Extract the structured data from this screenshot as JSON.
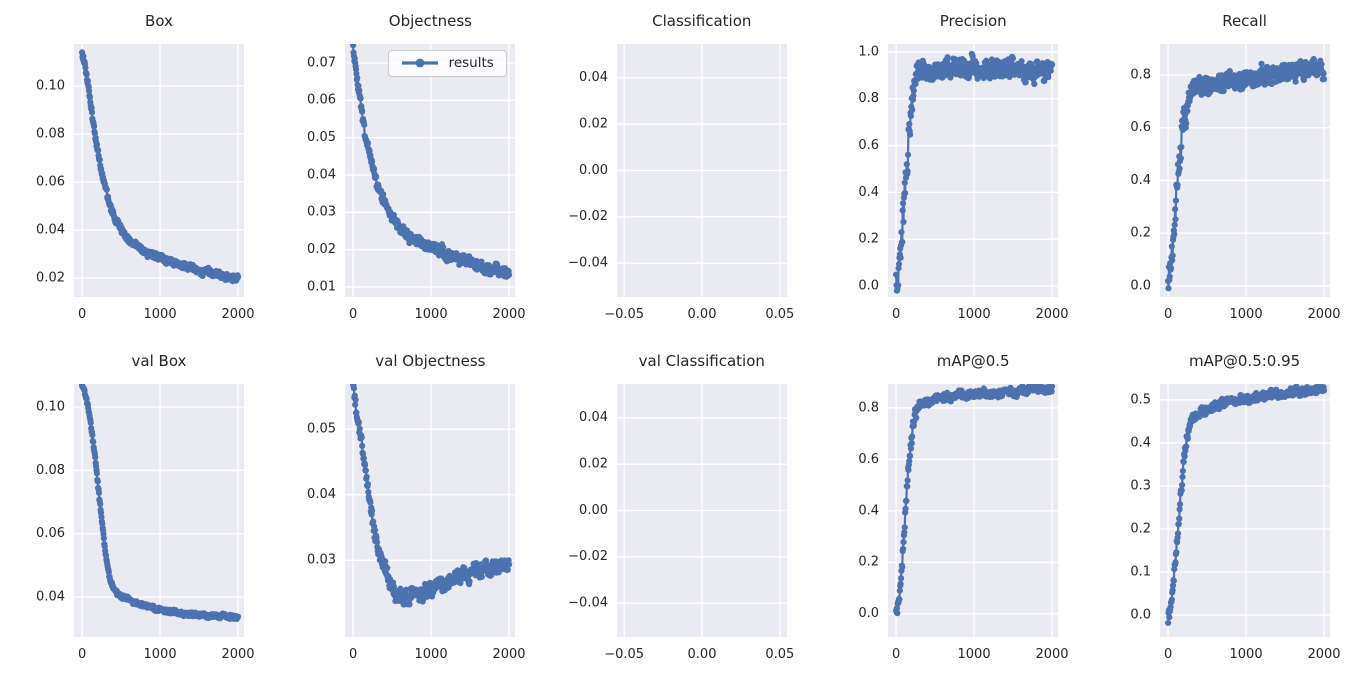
{
  "figure": {
    "background": "#ffffff",
    "axes_background": "#eaeaf2",
    "grid_color": "#ffffff",
    "text_color": "#262626",
    "accent_line_color": "#4c72b0",
    "legend_label": "results"
  },
  "chart_data": [
    {
      "type": "line",
      "title": "Box",
      "xlim": [
        -104,
        2077
      ],
      "ylim": [
        0.0121,
        0.1175
      ],
      "x_tick_values": [
        0,
        1000,
        2000
      ],
      "x_tick_labels": [
        "0",
        "1000",
        "2000"
      ],
      "y_tick_values": [
        0.02,
        0.04,
        0.06,
        0.08,
        0.1
      ],
      "y_tick_labels": [
        "0.02",
        "0.04",
        "0.06",
        "0.08",
        "0.10"
      ],
      "grid": true,
      "series": [
        {
          "name": "results",
          "x": [
            0,
            30,
            60,
            90,
            120,
            150,
            180,
            210,
            240,
            270,
            300,
            350,
            400,
            450,
            500,
            600,
            700,
            800,
            900,
            1000,
            1100,
            1200,
            1300,
            1400,
            1500,
            1600,
            1700,
            1800,
            1900,
            2000
          ],
          "y": [
            0.114,
            0.11,
            0.104,
            0.097,
            0.09,
            0.083,
            0.077,
            0.071,
            0.066,
            0.061,
            0.057,
            0.051,
            0.046,
            0.0425,
            0.04,
            0.036,
            0.0335,
            0.0315,
            0.03,
            0.0285,
            0.027,
            0.026,
            0.025,
            0.024,
            0.0232,
            0.0225,
            0.0218,
            0.0212,
            0.0207,
            0.0202
          ],
          "noise": 0.0017
        }
      ]
    },
    {
      "type": "line",
      "title": "Objectness",
      "legend": {
        "label": "results"
      },
      "xlim": [
        -104,
        2077
      ],
      "ylim": [
        0.0073,
        0.0751
      ],
      "x_tick_values": [
        0,
        1000,
        2000
      ],
      "x_tick_labels": [
        "0",
        "1000",
        "2000"
      ],
      "y_tick_values": [
        0.01,
        0.02,
        0.03,
        0.04,
        0.05,
        0.06,
        0.07
      ],
      "y_tick_labels": [
        "0.01",
        "0.02",
        "0.03",
        "0.04",
        "0.05",
        "0.06",
        "0.07"
      ],
      "grid": true,
      "series": [
        {
          "name": "results",
          "x": [
            0,
            30,
            60,
            90,
            120,
            150,
            180,
            210,
            240,
            270,
            300,
            350,
            400,
            450,
            500,
            600,
            700,
            800,
            900,
            1000,
            1100,
            1200,
            1300,
            1400,
            1500,
            1600,
            1700,
            1800,
            1900,
            2000
          ],
          "y": [
            0.073,
            0.069,
            0.064,
            0.06,
            0.056,
            0.052,
            0.049,
            0.046,
            0.043,
            0.0405,
            0.038,
            0.035,
            0.0325,
            0.0305,
            0.0285,
            0.026,
            0.024,
            0.0225,
            0.0215,
            0.0205,
            0.0195,
            0.0187,
            0.0179,
            0.0172,
            0.0165,
            0.0159,
            0.0153,
            0.0148,
            0.0143,
            0.0139
          ],
          "noise": 0.0017
        }
      ]
    },
    {
      "type": "line",
      "title": "Classification",
      "xlim": [
        -0.0546,
        0.0546
      ],
      "ylim": [
        -0.0546,
        0.0546
      ],
      "x_tick_values": [
        -0.05,
        0.0,
        0.05
      ],
      "x_tick_labels": [
        "−0.05",
        "0.00",
        "0.05"
      ],
      "y_tick_values": [
        0.04,
        0.02,
        0.0,
        -0.02,
        -0.04
      ],
      "y_tick_labels": [
        "0.04",
        "0.02",
        "0.00",
        "−0.02",
        "−0.04"
      ],
      "grid": true,
      "series": []
    },
    {
      "type": "line",
      "title": "Precision",
      "xlim": [
        -104,
        2077
      ],
      "ylim": [
        -0.047,
        1.034
      ],
      "x_tick_values": [
        0,
        1000,
        2000
      ],
      "x_tick_labels": [
        "0",
        "1000",
        "2000"
      ],
      "y_tick_values": [
        0.0,
        0.2,
        0.4,
        0.6,
        0.8,
        1.0
      ],
      "y_tick_labels": [
        "0.0",
        "0.2",
        "0.4",
        "0.6",
        "0.8",
        "1.0"
      ],
      "grid": true,
      "series": [
        {
          "name": "results",
          "x": [
            0,
            30,
            60,
            90,
            120,
            150,
            180,
            210,
            240,
            270,
            300,
            350,
            400,
            500,
            600,
            700,
            800,
            1000,
            1200,
            1400,
            1600,
            1800,
            2000
          ],
          "y": [
            0.01,
            0.06,
            0.15,
            0.28,
            0.42,
            0.56,
            0.68,
            0.78,
            0.86,
            0.9,
            0.905,
            0.91,
            0.915,
            0.925,
            0.93,
            0.935,
            0.93,
            0.935,
            0.93,
            0.935,
            0.925,
            0.92,
            0.92
          ],
          "noise": 0.05
        }
      ]
    },
    {
      "type": "line",
      "title": "Recall",
      "xlim": [
        -104,
        2077
      ],
      "ylim": [
        -0.042,
        0.9175
      ],
      "x_tick_values": [
        0,
        1000,
        2000
      ],
      "x_tick_labels": [
        "0",
        "1000",
        "2000"
      ],
      "y_tick_values": [
        0.0,
        0.2,
        0.4,
        0.6,
        0.8
      ],
      "y_tick_labels": [
        "0.0",
        "0.2",
        "0.4",
        "0.6",
        "0.8"
      ],
      "grid": true,
      "series": [
        {
          "name": "results",
          "x": [
            0,
            30,
            60,
            90,
            120,
            150,
            180,
            210,
            240,
            270,
            300,
            350,
            400,
            500,
            600,
            700,
            800,
            1000,
            1200,
            1400,
            1600,
            1800,
            2000
          ],
          "y": [
            0.02,
            0.07,
            0.14,
            0.25,
            0.37,
            0.48,
            0.57,
            0.64,
            0.685,
            0.71,
            0.73,
            0.75,
            0.755,
            0.765,
            0.77,
            0.775,
            0.78,
            0.785,
            0.795,
            0.805,
            0.815,
            0.82,
            0.825
          ],
          "noise": 0.04
        }
      ]
    },
    {
      "type": "line",
      "title": "val Box",
      "xlim": [
        -104,
        2077
      ],
      "ylim": [
        0.0274,
        0.1073
      ],
      "x_tick_values": [
        0,
        1000,
        2000
      ],
      "x_tick_labels": [
        "0",
        "1000",
        "2000"
      ],
      "y_tick_values": [
        0.04,
        0.06,
        0.08,
        0.1
      ],
      "y_tick_labels": [
        "0.04",
        "0.06",
        "0.08",
        "0.10"
      ],
      "grid": true,
      "series": [
        {
          "name": "results",
          "x": [
            0,
            30,
            60,
            90,
            120,
            150,
            180,
            210,
            240,
            270,
            300,
            330,
            360,
            400,
            450,
            500,
            600,
            700,
            800,
            1000,
            1200,
            1400,
            1600,
            1800,
            2000
          ],
          "y": [
            0.107,
            0.105,
            0.102,
            0.098,
            0.093,
            0.087,
            0.081,
            0.074,
            0.067,
            0.06,
            0.054,
            0.049,
            0.0455,
            0.043,
            0.0415,
            0.0405,
            0.039,
            0.038,
            0.0372,
            0.036,
            0.0352,
            0.0347,
            0.0343,
            0.034,
            0.0338
          ],
          "noise": 0.0008
        }
      ]
    },
    {
      "type": "line",
      "title": "val Objectness",
      "xlim": [
        -104,
        2077
      ],
      "ylim": [
        0.0183,
        0.0569
      ],
      "x_tick_values": [
        0,
        1000,
        2000
      ],
      "x_tick_labels": [
        "0",
        "1000",
        "2000"
      ],
      "y_tick_values": [
        0.03,
        0.04,
        0.05
      ],
      "y_tick_labels": [
        "0.03",
        "0.04",
        "0.05"
      ],
      "grid": true,
      "series": [
        {
          "name": "results",
          "x": [
            0,
            30,
            60,
            90,
            120,
            150,
            180,
            210,
            240,
            270,
            300,
            330,
            360,
            400,
            450,
            500,
            550,
            600,
            650,
            700,
            800,
            900,
            1000,
            1100,
            1200,
            1300,
            1400,
            1500,
            1600,
            1700,
            1800,
            1900,
            2000
          ],
          "y": [
            0.0565,
            0.054,
            0.051,
            0.049,
            0.047,
            0.0445,
            0.042,
            0.0395,
            0.037,
            0.035,
            0.033,
            0.0315,
            0.0302,
            0.029,
            0.0275,
            0.0262,
            0.0252,
            0.0247,
            0.0244,
            0.0245,
            0.0248,
            0.0252,
            0.0257,
            0.0262,
            0.0267,
            0.0272,
            0.0277,
            0.0281,
            0.0285,
            0.0287,
            0.0289,
            0.029,
            0.029
          ],
          "noise": 0.0013
        }
      ]
    },
    {
      "type": "line",
      "title": "val Classification",
      "xlim": [
        -0.0546,
        0.0546
      ],
      "ylim": [
        -0.0546,
        0.0546
      ],
      "x_tick_values": [
        -0.05,
        0.0,
        0.05
      ],
      "x_tick_labels": [
        "−0.05",
        "0.00",
        "0.05"
      ],
      "y_tick_values": [
        0.04,
        0.02,
        0.0,
        -0.02,
        -0.04
      ],
      "y_tick_labels": [
        "0.04",
        "0.02",
        "0.00",
        "−0.02",
        "−0.04"
      ],
      "grid": true,
      "series": []
    },
    {
      "type": "line",
      "title": "mAP@0.5",
      "xlim": [
        -104,
        2077
      ],
      "ylim": [
        -0.09,
        0.893
      ],
      "x_tick_values": [
        0,
        1000,
        2000
      ],
      "x_tick_labels": [
        "0",
        "1000",
        "2000"
      ],
      "y_tick_values": [
        0.0,
        0.2,
        0.4,
        0.6,
        0.8
      ],
      "y_tick_labels": [
        "0.0",
        "0.2",
        "0.4",
        "0.6",
        "0.8"
      ],
      "grid": true,
      "series": [
        {
          "name": "results",
          "x": [
            0,
            30,
            60,
            90,
            120,
            150,
            180,
            210,
            240,
            270,
            300,
            350,
            400,
            500,
            600,
            700,
            800,
            1000,
            1200,
            1400,
            1600,
            1800,
            2000
          ],
          "y": [
            0.005,
            0.04,
            0.12,
            0.25,
            0.4,
            0.53,
            0.63,
            0.71,
            0.77,
            0.8,
            0.815,
            0.82,
            0.825,
            0.835,
            0.84,
            0.845,
            0.848,
            0.853,
            0.857,
            0.862,
            0.868,
            0.872,
            0.875
          ],
          "noise": 0.018
        }
      ]
    },
    {
      "type": "line",
      "title": "mAP@0.5:0.95",
      "xlim": [
        -104,
        2077
      ],
      "ylim": [
        -0.051,
        0.537
      ],
      "x_tick_values": [
        0,
        1000,
        2000
      ],
      "x_tick_labels": [
        "0",
        "1000",
        "2000"
      ],
      "y_tick_values": [
        0.0,
        0.1,
        0.2,
        0.3,
        0.4,
        0.5
      ],
      "y_tick_labels": [
        "0.0",
        "0.1",
        "0.2",
        "0.3",
        "0.4",
        "0.5"
      ],
      "grid": true,
      "series": [
        {
          "name": "results",
          "x": [
            0,
            30,
            60,
            90,
            120,
            150,
            180,
            210,
            240,
            270,
            300,
            350,
            400,
            500,
            600,
            700,
            800,
            1000,
            1200,
            1400,
            1600,
            1800,
            2000
          ],
          "y": [
            0.002,
            0.02,
            0.06,
            0.12,
            0.19,
            0.26,
            0.32,
            0.37,
            0.41,
            0.435,
            0.45,
            0.462,
            0.47,
            0.48,
            0.487,
            0.492,
            0.496,
            0.503,
            0.509,
            0.514,
            0.519,
            0.523,
            0.527
          ],
          "noise": 0.011
        }
      ]
    }
  ]
}
